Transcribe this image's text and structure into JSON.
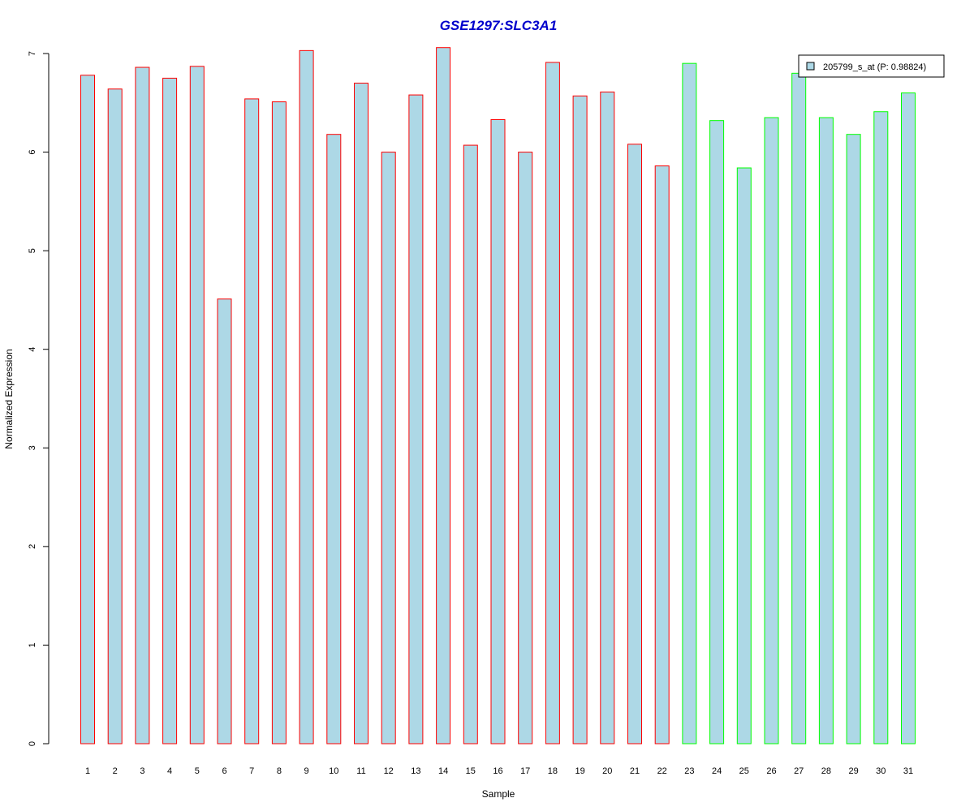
{
  "chart_data": {
    "type": "bar",
    "title": "GSE1297:SLC3A1",
    "xlabel": "Sample",
    "ylabel": "Normalized Expression",
    "ylim": [
      0,
      7
    ],
    "yticks": [
      "0",
      "1",
      "2",
      "3",
      "4",
      "5",
      "6",
      "7"
    ],
    "categories": [
      "1",
      "2",
      "3",
      "4",
      "5",
      "6",
      "7",
      "8",
      "9",
      "10",
      "11",
      "12",
      "13",
      "14",
      "15",
      "16",
      "17",
      "18",
      "19",
      "20",
      "21",
      "22",
      "23",
      "24",
      "25",
      "26",
      "27",
      "28",
      "29",
      "30",
      "31"
    ],
    "series": [
      {
        "name": "205799_s_at (P: 0.98824)",
        "values": [
          6.78,
          6.64,
          6.86,
          6.75,
          6.87,
          4.51,
          6.54,
          6.51,
          7.03,
          6.18,
          6.7,
          6.0,
          6.58,
          7.06,
          6.07,
          6.33,
          6.0,
          6.91,
          6.57,
          6.61,
          6.08,
          5.86,
          6.9,
          6.32,
          5.84,
          6.35,
          6.8,
          6.35,
          6.18,
          6.41,
          6.6
        ],
        "fill": "#ADD8E6"
      }
    ],
    "bar_border_colors": [
      "#FF0000",
      "#FF0000",
      "#FF0000",
      "#FF0000",
      "#FF0000",
      "#FF0000",
      "#FF0000",
      "#FF0000",
      "#FF0000",
      "#FF0000",
      "#FF0000",
      "#FF0000",
      "#FF0000",
      "#FF0000",
      "#FF0000",
      "#FF0000",
      "#FF0000",
      "#FF0000",
      "#FF0000",
      "#FF0000",
      "#FF0000",
      "#FF0000",
      "#00FF00",
      "#00FF00",
      "#00FF00",
      "#00FF00",
      "#00FF00",
      "#00FF00",
      "#00FF00",
      "#00FF00",
      "#00FF00"
    ],
    "title_color": "#0000CC",
    "legend": {
      "label": "205799_s_at (P: 0.98824)",
      "position": "top-right",
      "swatch_color": "#ADD8E6"
    },
    "grid": false
  }
}
